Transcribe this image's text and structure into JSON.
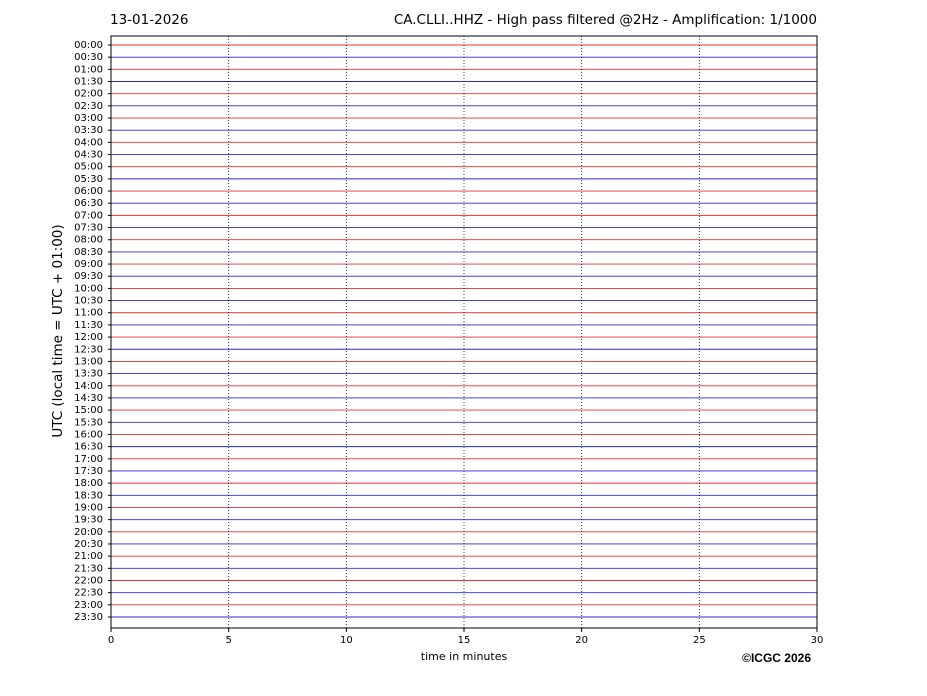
{
  "chart_data": {
    "type": "helicorder",
    "title": "CA.CLLI..HHZ - High pass filtered @2Hz - Amplification: 1/1000",
    "date": "13-01-2026",
    "xlabel": "time in minutes",
    "ylabel": "UTC (local time = UTC + 01:00)",
    "credit": "©ICGC 2026",
    "xlim": [
      0,
      30
    ],
    "xticks": [
      0,
      5,
      10,
      15,
      20,
      25,
      30
    ],
    "grid": true,
    "grid_color": "#00008b",
    "trace_colors": [
      "#e8302a",
      "#2a2ad8"
    ],
    "categories": [
      "00:00",
      "00:30",
      "01:00",
      "01:30",
      "02:00",
      "02:30",
      "03:00",
      "03:30",
      "04:00",
      "04:30",
      "05:00",
      "05:30",
      "06:00",
      "06:30",
      "07:00",
      "07:30",
      "08:00",
      "08:30",
      "09:00",
      "09:30",
      "10:00",
      "10:30",
      "11:00",
      "11:30",
      "12:00",
      "12:30",
      "13:00",
      "13:30",
      "14:00",
      "14:30",
      "15:00",
      "15:30",
      "16:00",
      "16:30",
      "17:00",
      "17:30",
      "18:00",
      "18:30",
      "19:00",
      "19:30",
      "20:00",
      "20:30",
      "21:00",
      "21:30",
      "22:00",
      "22:30",
      "23:00",
      "23:30"
    ]
  }
}
